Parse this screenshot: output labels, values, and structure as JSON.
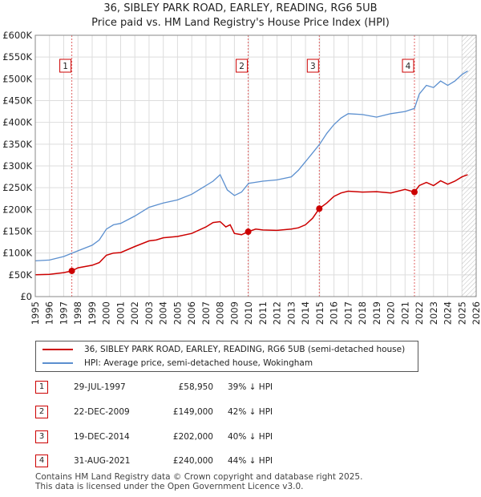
{
  "title_line1": "36, SIBLEY PARK ROAD, EARLEY, READING, RG6 5UB",
  "title_line2": "Price paid vs. HM Land Registry's House Price Index (HPI)",
  "legend": {
    "property_label": "36, SIBLEY PARK ROAD, EARLEY, READING, RG6 5UB (semi-detached house)",
    "hpi_label": "HPI: Average price, semi-detached house, Wokingham"
  },
  "transactions": [
    {
      "num": "1",
      "date": "29-JUL-1997",
      "price": "£58,950",
      "diff": "39% ↓ HPI"
    },
    {
      "num": "2",
      "date": "22-DEC-2009",
      "price": "£149,000",
      "diff": "42% ↓ HPI"
    },
    {
      "num": "3",
      "date": "19-DEC-2014",
      "price": "£202,000",
      "diff": "40% ↓ HPI"
    },
    {
      "num": "4",
      "date": "31-AUG-2021",
      "price": "£240,000",
      "diff": "44% ↓ HPI"
    }
  ],
  "footer_line1": "Contains HM Land Registry data © Crown copyright and database right 2025.",
  "footer_line2": "This data is licensed under the Open Government Licence v3.0.",
  "colors": {
    "property": "#cc0000",
    "hpi": "#5b8fcf",
    "grid": "#dddddd",
    "marker_line": "#e06060"
  },
  "chart_data": {
    "type": "line",
    "title": "36, SIBLEY PARK ROAD, EARLEY, READING, RG6 5UB",
    "subtitle": "Price paid vs. HM Land Registry's House Price Index (HPI)",
    "xlim": [
      1995,
      2026
    ],
    "ylim": [
      0,
      600000
    ],
    "x_ticks": [
      1995,
      1996,
      1997,
      1998,
      1999,
      2000,
      2001,
      2002,
      2003,
      2004,
      2005,
      2006,
      2007,
      2008,
      2009,
      2010,
      2011,
      2012,
      2013,
      2014,
      2015,
      2016,
      2017,
      2018,
      2019,
      2020,
      2021,
      2022,
      2023,
      2024,
      2025,
      2026
    ],
    "y_ticks": [
      0,
      50000,
      100000,
      150000,
      200000,
      250000,
      300000,
      350000,
      400000,
      450000,
      500000,
      550000,
      600000
    ],
    "y_tick_labels": [
      "£0",
      "£50K",
      "£100K",
      "£150K",
      "£200K",
      "£250K",
      "£300K",
      "£350K",
      "£400K",
      "£450K",
      "£500K",
      "£550K",
      "£600K"
    ],
    "series": [
      {
        "name": "36, SIBLEY PARK ROAD, EARLEY, READING, RG6 5UB (semi-detached house)",
        "x": [
          1995,
          1996,
          1997,
          1997.57,
          1998,
          1999,
          1999.5,
          2000,
          2000.5,
          2001,
          2002,
          2003,
          2003.5,
          2004,
          2005,
          2006,
          2007,
          2007.5,
          2008,
          2008.4,
          2008.7,
          2009,
          2009.5,
          2009.97,
          2010.5,
          2011,
          2012,
          2013,
          2013.5,
          2014,
          2014.5,
          2014.97,
          2015.5,
          2016,
          2016.5,
          2017,
          2018,
          2019,
          2020,
          2021,
          2021.66,
          2022,
          2022.5,
          2023,
          2023.5,
          2024,
          2024.5,
          2025,
          2025.4
        ],
        "y": [
          50000,
          51000,
          55000,
          58950,
          66000,
          72000,
          78000,
          95000,
          100000,
          101000,
          115000,
          128000,
          130000,
          135000,
          138000,
          145000,
          160000,
          170000,
          172000,
          160000,
          165000,
          145000,
          142000,
          149000,
          155000,
          153000,
          152000,
          155000,
          158000,
          165000,
          180000,
          202000,
          215000,
          230000,
          238000,
          242000,
          240000,
          241000,
          238000,
          246000,
          240000,
          255000,
          262000,
          255000,
          266000,
          258000,
          265000,
          275000,
          280000
        ]
      },
      {
        "name": "HPI: Average price, semi-detached house, Wokingham",
        "x": [
          1995,
          1996,
          1997,
          1998,
          1999,
          1999.5,
          2000,
          2000.5,
          2001,
          2002,
          2003,
          2004,
          2005,
          2006,
          2007,
          2007.5,
          2008,
          2008.5,
          2009,
          2009.5,
          2010,
          2011,
          2012,
          2013,
          2013.5,
          2014,
          2014.5,
          2015,
          2015.5,
          2016,
          2016.5,
          2017,
          2018,
          2019,
          2020,
          2021,
          2021.66,
          2022,
          2022.5,
          2023,
          2023.5,
          2024,
          2024.5,
          2025,
          2025.4
        ],
        "y": [
          82000,
          84000,
          92000,
          105000,
          118000,
          130000,
          155000,
          165000,
          168000,
          185000,
          205000,
          215000,
          222000,
          235000,
          255000,
          265000,
          280000,
          245000,
          232000,
          240000,
          260000,
          265000,
          268000,
          275000,
          290000,
          310000,
          330000,
          350000,
          375000,
          395000,
          410000,
          420000,
          418000,
          412000,
          420000,
          425000,
          432000,
          465000,
          485000,
          480000,
          495000,
          485000,
          495000,
          510000,
          518000
        ]
      }
    ],
    "sale_markers": [
      {
        "label": "1",
        "x": 1997.57,
        "y": 58950
      },
      {
        "label": "2",
        "x": 2009.97,
        "y": 149000
      },
      {
        "label": "3",
        "x": 2014.97,
        "y": 202000
      },
      {
        "label": "4",
        "x": 2021.66,
        "y": 240000
      }
    ],
    "annotations": [
      "2025 onwards hatched"
    ]
  }
}
